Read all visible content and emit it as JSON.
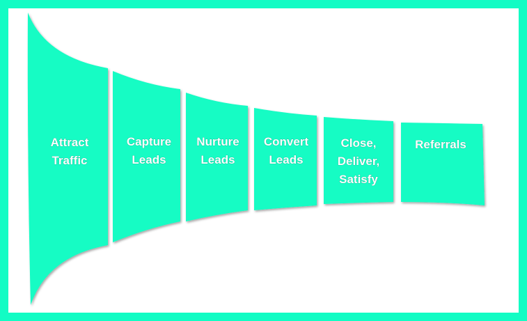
{
  "stages": [
    {
      "lines": [
        "Attract",
        "Traffic"
      ]
    },
    {
      "lines": [
        "Capture",
        "Leads"
      ]
    },
    {
      "lines": [
        "Nurture",
        "Leads"
      ]
    },
    {
      "lines": [
        "Convert",
        "Leads"
      ]
    },
    {
      "lines": [
        "Close,",
        "Deliver,",
        "Satisfy"
      ]
    },
    {
      "lines": [
        "Referrals"
      ]
    }
  ],
  "colors": {
    "border": "#12fcc4",
    "segment": "#12fcc4",
    "background": "#ffffff",
    "label": "#ffffff"
  }
}
